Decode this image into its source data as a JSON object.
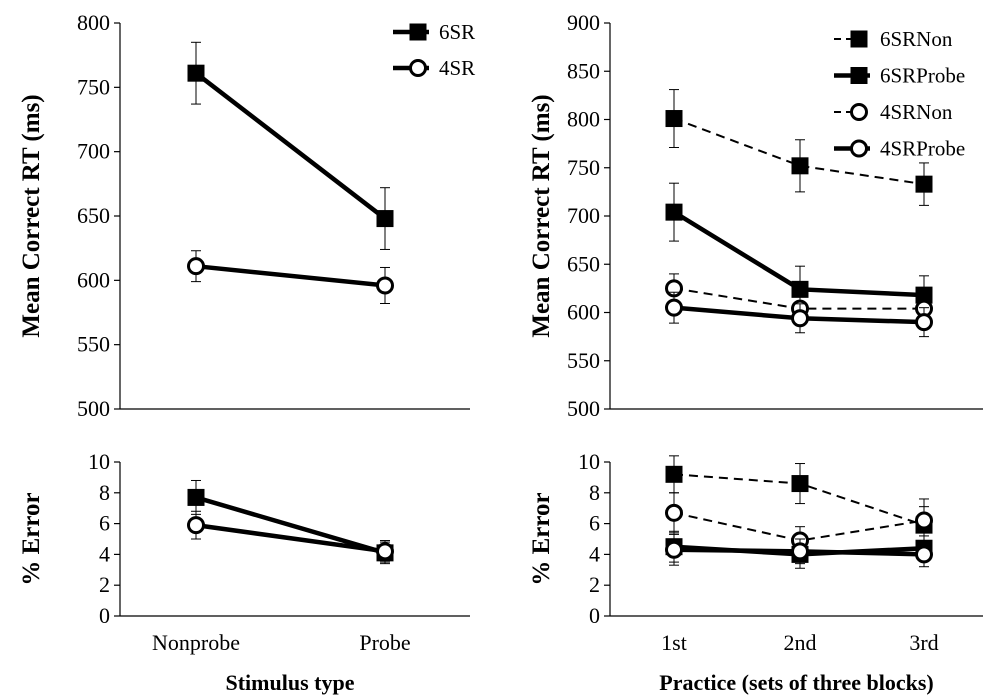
{
  "chart_data": [
    {
      "type": "line",
      "panel": "top-left",
      "xlabel": "",
      "ylabel": "Mean Correct RT (ms)",
      "categories": [
        "Nonprobe",
        "Probe"
      ],
      "ylim": [
        500,
        800
      ],
      "yticks": [
        500,
        550,
        600,
        650,
        700,
        750,
        800
      ],
      "legend_position": "top-right",
      "series": [
        {
          "name": "6SR",
          "marker": "filled-square",
          "line": "solid",
          "values": [
            761,
            648
          ],
          "errors": [
            24,
            24
          ]
        },
        {
          "name": "4SR",
          "marker": "open-circle",
          "line": "solid",
          "values": [
            611,
            596
          ],
          "errors": [
            12,
            14
          ]
        }
      ]
    },
    {
      "type": "line",
      "panel": "top-right",
      "xlabel": "",
      "ylabel": "Mean Correct RT (ms)",
      "categories": [
        "1st",
        "2nd",
        "3rd"
      ],
      "ylim": [
        500,
        900
      ],
      "yticks": [
        500,
        550,
        600,
        650,
        700,
        750,
        800,
        850,
        900
      ],
      "legend_position": "top-right",
      "series": [
        {
          "name": "6SRNon",
          "marker": "filled-square",
          "line": "dashed",
          "values": [
            801,
            752,
            733
          ],
          "errors": [
            30,
            27,
            22
          ]
        },
        {
          "name": "6SRProbe",
          "marker": "filled-square",
          "line": "solid",
          "values": [
            704,
            624,
            618
          ],
          "errors": [
            30,
            24,
            20
          ]
        },
        {
          "name": "4SRNon",
          "marker": "open-circle",
          "line": "dashed",
          "values": [
            625,
            604,
            604
          ],
          "errors": [
            15,
            13,
            12
          ]
        },
        {
          "name": "4SRProbe",
          "marker": "open-circle",
          "line": "solid",
          "values": [
            605,
            594,
            590
          ],
          "errors": [
            16,
            15,
            15
          ]
        }
      ]
    },
    {
      "type": "line",
      "panel": "bottom-left",
      "xlabel": "Stimulus type",
      "ylabel": "% Error",
      "categories": [
        "Nonprobe",
        "Probe"
      ],
      "ylim": [
        0,
        10
      ],
      "yticks": [
        0,
        2,
        4,
        6,
        8,
        10
      ],
      "series": [
        {
          "name": "6SR",
          "marker": "filled-square",
          "line": "solid",
          "values": [
            7.7,
            4.1
          ],
          "errors": [
            1.1,
            0.7
          ]
        },
        {
          "name": "4SR",
          "marker": "open-circle",
          "line": "solid",
          "values": [
            5.9,
            4.2
          ],
          "errors": [
            0.9,
            0.7
          ]
        }
      ]
    },
    {
      "type": "line",
      "panel": "bottom-right",
      "xlabel": "Practice (sets of three blocks)",
      "ylabel": "% Error",
      "categories": [
        "1st",
        "2nd",
        "3rd"
      ],
      "ylim": [
        0,
        10
      ],
      "yticks": [
        0,
        2,
        4,
        6,
        8,
        10
      ],
      "series": [
        {
          "name": "6SRNon",
          "marker": "filled-square",
          "line": "dashed",
          "values": [
            9.2,
            8.6,
            5.9
          ],
          "errors": [
            1.2,
            1.3,
            1.2
          ]
        },
        {
          "name": "6SRProbe",
          "marker": "filled-square",
          "line": "solid",
          "values": [
            4.5,
            4.0,
            4.4
          ],
          "errors": [
            1.0,
            0.9,
            0.8
          ]
        },
        {
          "name": "4SRNon",
          "marker": "open-circle",
          "line": "dashed",
          "values": [
            6.7,
            4.9,
            6.2
          ],
          "errors": [
            1.3,
            0.9,
            1.4
          ]
        },
        {
          "name": "4SRProbe",
          "marker": "open-circle",
          "line": "solid",
          "values": [
            4.3,
            4.2,
            4.0
          ],
          "errors": [
            1.0,
            0.8,
            0.8
          ]
        }
      ]
    }
  ]
}
